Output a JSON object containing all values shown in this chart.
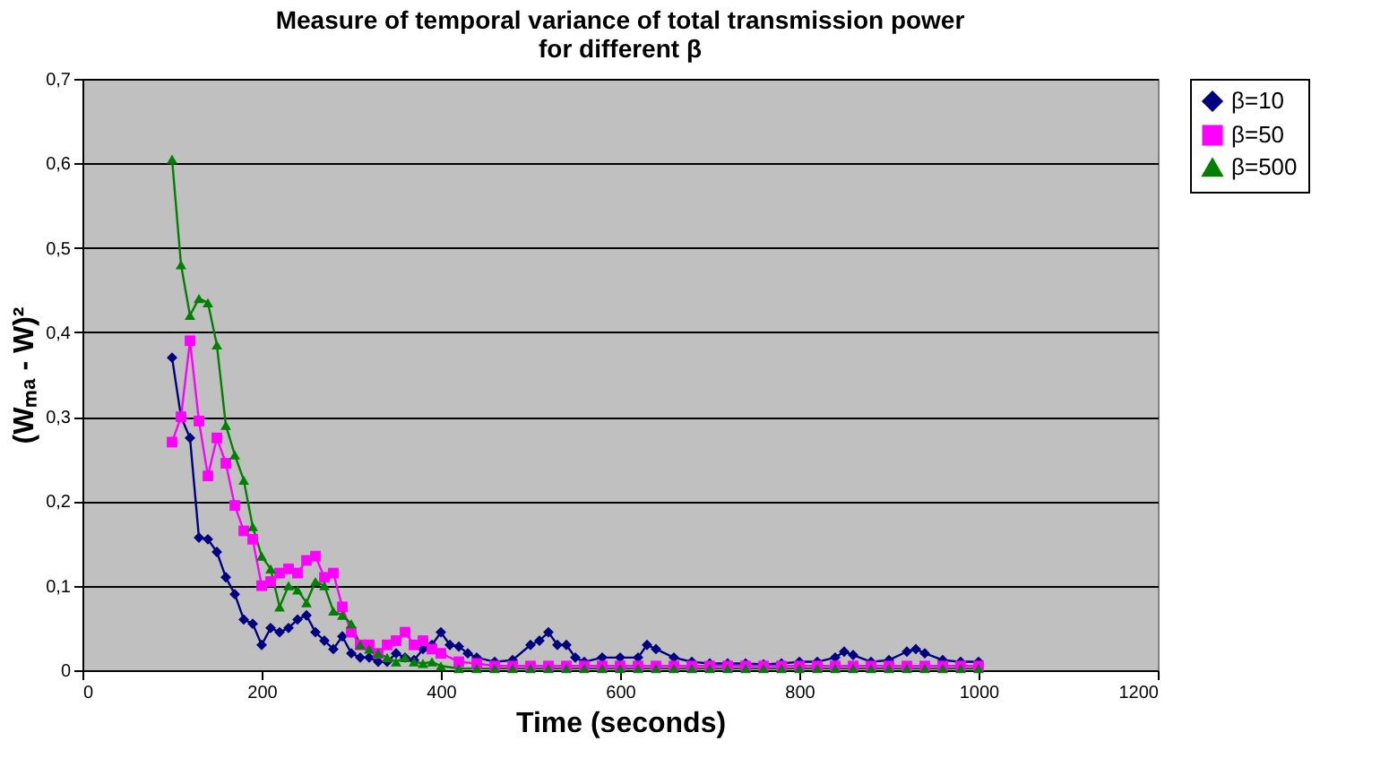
{
  "chart_data": {
    "type": "line",
    "title": [
      "Measure of temporal variance of total transmission power",
      "for different β"
    ],
    "xlabel": "Time (seconds)",
    "ylabel": "(Wₘₐ - W)²",
    "xlim": [
      0,
      1200
    ],
    "xticks": [
      0,
      200,
      400,
      600,
      800,
      1000,
      1200
    ],
    "ylim": [
      0,
      0.7
    ],
    "yticks": [
      0,
      {
        "value": 0.1,
        "label": "0,1"
      },
      {
        "value": 0.2,
        "label": "0,2"
      },
      {
        "value": 0.3,
        "label": "0,3"
      },
      {
        "value": 0.4,
        "label": "0,4"
      },
      {
        "value": 0.5,
        "label": "0,5"
      },
      {
        "value": 0.6,
        "label": "0,6"
      },
      {
        "value": 0.7,
        "label": "0,7"
      }
    ],
    "grid": "y",
    "legend": "right",
    "series": [
      {
        "name": "β=10",
        "color": "#000080",
        "marker": "diamond",
        "x": [
          100,
          110,
          120,
          130,
          140,
          150,
          160,
          170,
          180,
          190,
          200,
          210,
          220,
          230,
          240,
          250,
          260,
          270,
          280,
          290,
          300,
          310,
          320,
          330,
          340,
          350,
          360,
          370,
          380,
          390,
          400,
          410,
          420,
          430,
          440,
          460,
          480,
          500,
          510,
          520,
          530,
          540,
          550,
          560,
          580,
          600,
          620,
          630,
          640,
          660,
          680,
          700,
          720,
          740,
          760,
          780,
          800,
          820,
          840,
          850,
          860,
          880,
          900,
          920,
          930,
          940,
          960,
          980,
          1000
        ],
        "values": [
          0.37,
          0.3,
          0.275,
          0.157,
          0.155,
          0.14,
          0.11,
          0.09,
          0.06,
          0.055,
          0.03,
          0.05,
          0.045,
          0.05,
          0.06,
          0.065,
          0.045,
          0.035,
          0.025,
          0.04,
          0.02,
          0.015,
          0.015,
          0.01,
          0.01,
          0.02,
          0.015,
          0.012,
          0.025,
          0.03,
          0.045,
          0.03,
          0.028,
          0.02,
          0.015,
          0.01,
          0.012,
          0.03,
          0.035,
          0.045,
          0.03,
          0.03,
          0.015,
          0.01,
          0.015,
          0.015,
          0.015,
          0.03,
          0.025,
          0.015,
          0.01,
          0.008,
          0.008,
          0.008,
          0.007,
          0.008,
          0.01,
          0.01,
          0.015,
          0.022,
          0.018,
          0.01,
          0.012,
          0.022,
          0.025,
          0.02,
          0.012,
          0.01,
          0.01
        ]
      },
      {
        "name": "β=50",
        "color": "#ff00ff",
        "marker": "square",
        "x": [
          100,
          110,
          120,
          130,
          140,
          150,
          160,
          170,
          180,
          190,
          200,
          210,
          220,
          230,
          240,
          250,
          260,
          270,
          280,
          290,
          300,
          310,
          320,
          330,
          340,
          350,
          360,
          370,
          380,
          390,
          400,
          420,
          440,
          460,
          480,
          500,
          520,
          540,
          560,
          580,
          600,
          620,
          640,
          660,
          680,
          700,
          720,
          740,
          760,
          780,
          800,
          820,
          840,
          860,
          880,
          900,
          920,
          940,
          960,
          980,
          1000
        ],
        "values": [
          0.27,
          0.3,
          0.39,
          0.295,
          0.23,
          0.275,
          0.245,
          0.195,
          0.165,
          0.155,
          0.1,
          0.105,
          0.115,
          0.12,
          0.115,
          0.13,
          0.135,
          0.11,
          0.115,
          0.075,
          0.045,
          0.03,
          0.03,
          0.02,
          0.03,
          0.035,
          0.045,
          0.03,
          0.035,
          0.025,
          0.02,
          0.01,
          0.008,
          0.005,
          0.005,
          0.005,
          0.005,
          0.005,
          0.005,
          0.005,
          0.005,
          0.005,
          0.005,
          0.005,
          0.005,
          0.005,
          0.005,
          0.005,
          0.005,
          0.005,
          0.005,
          0.005,
          0.005,
          0.005,
          0.005,
          0.005,
          0.005,
          0.005,
          0.005,
          0.005,
          0.005
        ]
      },
      {
        "name": "β=500",
        "color": "#008000",
        "marker": "triangle",
        "x": [
          100,
          110,
          120,
          130,
          140,
          150,
          160,
          170,
          180,
          190,
          200,
          210,
          220,
          230,
          240,
          250,
          260,
          270,
          280,
          290,
          300,
          310,
          320,
          330,
          340,
          350,
          360,
          370,
          380,
          390,
          400,
          420,
          440,
          460,
          480,
          500,
          520,
          540,
          560,
          580,
          600,
          620,
          640,
          660,
          680,
          700,
          720,
          740,
          760,
          780,
          800,
          820,
          840,
          860,
          880,
          900,
          920,
          940,
          960,
          980,
          1000
        ],
        "values": [
          0.605,
          0.48,
          0.42,
          0.44,
          0.435,
          0.385,
          0.29,
          0.255,
          0.225,
          0.17,
          0.135,
          0.12,
          0.075,
          0.1,
          0.095,
          0.08,
          0.105,
          0.1,
          0.07,
          0.065,
          0.055,
          0.03,
          0.025,
          0.02,
          0.015,
          0.01,
          0.015,
          0.01,
          0.008,
          0.01,
          0.005,
          0.002,
          0.002,
          0.002,
          0.002,
          0.002,
          0.002,
          0.002,
          0.002,
          0.002,
          0.002,
          0.002,
          0.002,
          0.002,
          0.002,
          0.002,
          0.002,
          0.002,
          0.002,
          0.002,
          0.002,
          0.002,
          0.002,
          0.002,
          0.002,
          0.002,
          0.002,
          0.002,
          0.002,
          0.002,
          0.002
        ]
      }
    ]
  }
}
